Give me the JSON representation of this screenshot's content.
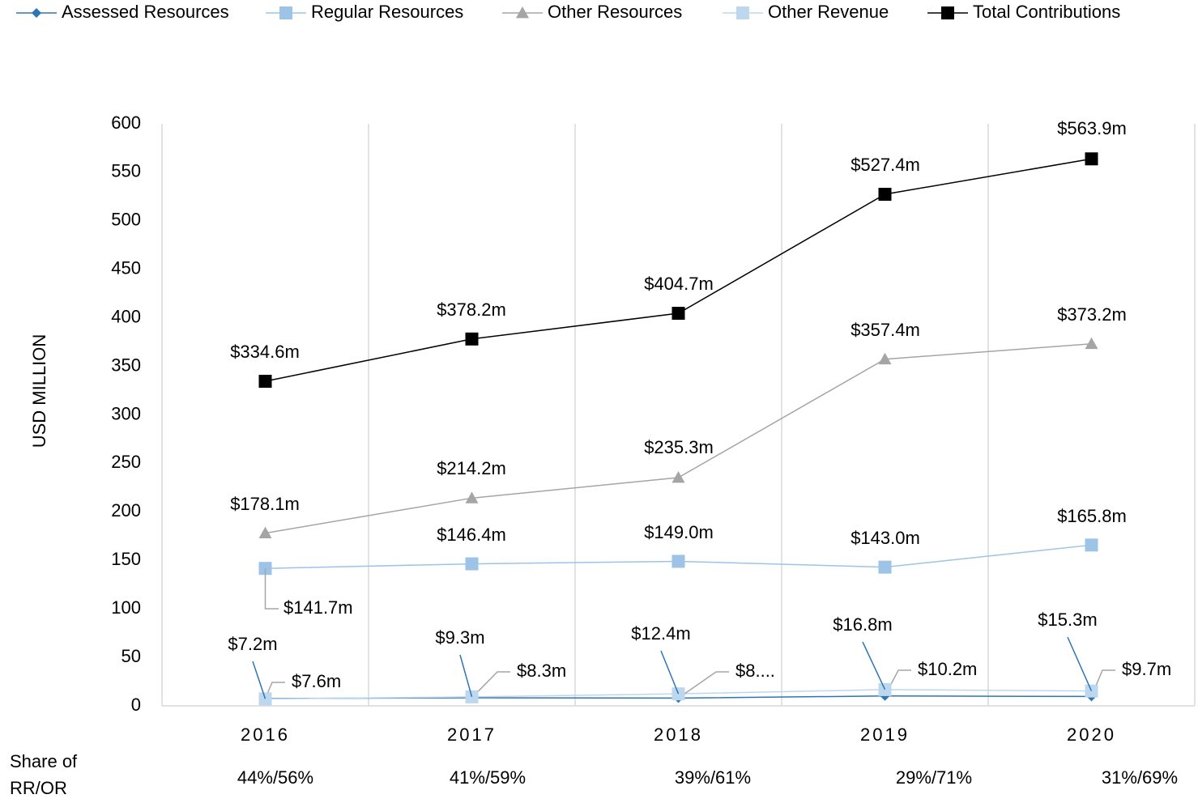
{
  "chart_data": {
    "type": "line",
    "y_axis_label": "USD MILLION",
    "categories": [
      "2016",
      "2017",
      "2018",
      "2019",
      "2020"
    ],
    "ylim": [
      0,
      600
    ],
    "yticks": [
      0,
      50,
      100,
      150,
      200,
      250,
      300,
      350,
      400,
      450,
      500,
      550,
      600
    ],
    "grid": true,
    "legend": "top",
    "series": [
      {
        "name": "Assessed Resources",
        "color": "#2e75b6",
        "marker": "diamond",
        "values": [
          7.6,
          8.3,
          8.0,
          10.2,
          9.7
        ],
        "value_labels": [
          "$7.6m",
          "$8.3m",
          "$8....",
          "$10.2m",
          "$9.7m"
        ]
      },
      {
        "name": "Regular Resources",
        "color": "#9dc3e6",
        "marker": "square",
        "values": [
          141.7,
          146.4,
          149.0,
          143.0,
          165.8
        ],
        "value_labels": [
          "$141.7m",
          "$146.4m",
          "$149.0m",
          "$143.0m",
          "$165.8m"
        ]
      },
      {
        "name": "Other Resources",
        "color": "#a5a5a5",
        "marker": "triangle",
        "values": [
          178.1,
          214.2,
          235.3,
          357.4,
          373.2
        ],
        "value_labels": [
          "$178.1m",
          "$214.2m",
          "$235.3m",
          "$357.4m",
          "$373.2m"
        ]
      },
      {
        "name": "Other Revenue",
        "color": "#bdd7ee",
        "marker": "square",
        "values": [
          7.2,
          9.3,
          12.4,
          16.8,
          15.3
        ],
        "value_labels": [
          "$7.2m",
          "$9.3m",
          "$12.4m",
          "$16.8m",
          "$15.3m"
        ]
      },
      {
        "name": "Total Contributions",
        "color": "#000000",
        "marker": "square",
        "values": [
          334.6,
          378.2,
          404.7,
          527.4,
          563.9
        ],
        "value_labels": [
          "$334.6m",
          "$378.2m",
          "$404.7m",
          "$527.4m",
          "$563.9m"
        ]
      }
    ],
    "footer_label": "Share of RR/OR",
    "footer_values": [
      "44%/56%",
      "41%/59%",
      "39%/61%",
      "29%/71%",
      "31%/69%"
    ]
  }
}
